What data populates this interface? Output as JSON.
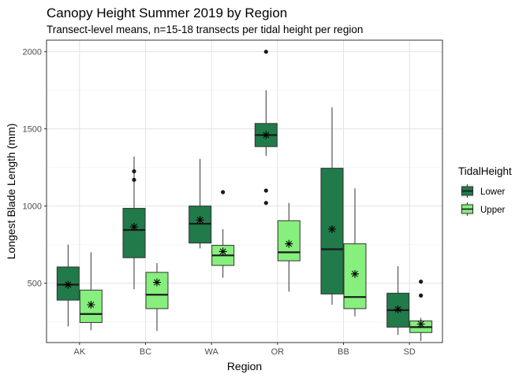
{
  "chart_data": {
    "type": "boxplot",
    "title": "Canopy Height Summer 2019 by Region",
    "subtitle": "Transect-level means, n=15-18 transects per tidal height per region",
    "xlabel": "Region",
    "ylabel": "Longest Blade Length (mm)",
    "ylim": [
      115,
      2075
    ],
    "yticks": [
      500,
      1000,
      1500,
      2000
    ],
    "categories": [
      "AK",
      "BC",
      "WA",
      "OR",
      "BB",
      "SD"
    ],
    "grid": true,
    "legend": {
      "title": "TidalHeight",
      "position": "right",
      "entries": [
        "Lower",
        "Upper"
      ]
    },
    "series": [
      {
        "name": "Lower",
        "color": "#217a4a",
        "boxes": [
          {
            "min": 220,
            "q1": 390,
            "median": 490,
            "q3": 605,
            "max": 750,
            "mean": 490,
            "outliers": []
          },
          {
            "min": 460,
            "q1": 665,
            "median": 845,
            "q3": 985,
            "max": 1320,
            "mean": 865,
            "outliers": [
              1225,
              1170
            ]
          },
          {
            "min": 725,
            "q1": 760,
            "median": 885,
            "q3": 1000,
            "max": 1305,
            "mean": 910,
            "outliers": []
          },
          {
            "min": 1325,
            "q1": 1385,
            "median": 1460,
            "q3": 1535,
            "max": 1750,
            "mean": 1460,
            "outliers": [
              2000,
              1100,
              1020
            ]
          },
          {
            "min": 360,
            "q1": 430,
            "median": 720,
            "q3": 1245,
            "max": 1640,
            "mean": 850,
            "outliers": []
          },
          {
            "min": 165,
            "q1": 215,
            "median": 325,
            "q3": 435,
            "max": 610,
            "mean": 330,
            "outliers": []
          }
        ]
      },
      {
        "name": "Upper",
        "color": "#86ef7d",
        "boxes": [
          {
            "min": 195,
            "q1": 245,
            "median": 300,
            "q3": 455,
            "max": 700,
            "mean": 360,
            "outliers": []
          },
          {
            "min": 190,
            "q1": 335,
            "median": 425,
            "q3": 570,
            "max": 630,
            "mean": 505,
            "outliers": []
          },
          {
            "min": 535,
            "q1": 615,
            "median": 680,
            "q3": 745,
            "max": 850,
            "mean": 705,
            "outliers": [
              1090
            ]
          },
          {
            "min": 445,
            "q1": 645,
            "median": 700,
            "q3": 905,
            "max": 1020,
            "mean": 755,
            "outliers": []
          },
          {
            "min": 285,
            "q1": 335,
            "median": 410,
            "q3": 755,
            "max": 1115,
            "mean": 560,
            "outliers": []
          },
          {
            "min": 125,
            "q1": 180,
            "median": 215,
            "q3": 255,
            "max": 275,
            "mean": 235,
            "outliers": [
              510,
              420
            ]
          }
        ]
      }
    ]
  }
}
